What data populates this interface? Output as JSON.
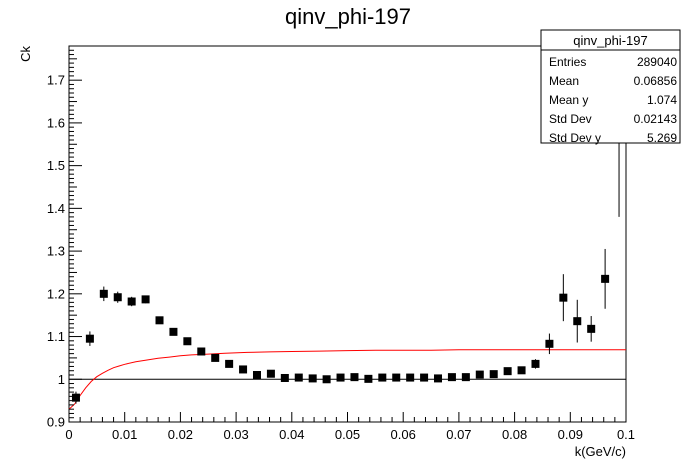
{
  "chart_data": {
    "type": "scatter",
    "title": "qinv_phi-197",
    "xlabel": "k(GeV/c)",
    "ylabel": "Ck",
    "xlim": [
      0,
      0.1
    ],
    "ylim": [
      0.9,
      1.78
    ],
    "x_ticks": [
      0,
      0.01,
      0.02,
      0.03,
      0.04,
      0.05,
      0.06,
      0.07,
      0.08,
      0.09,
      0.1
    ],
    "x_tick_labels": [
      "0",
      "0.01",
      "0.02",
      "0.03",
      "0.04",
      "0.05",
      "0.06",
      "0.07",
      "0.08",
      "0.09",
      "0.1"
    ],
    "y_ticks": [
      0.9,
      1.0,
      1.1,
      1.2,
      1.3,
      1.4,
      1.5,
      1.6,
      1.7
    ],
    "y_tick_labels": [
      "0.9",
      "1",
      "1.1",
      "1.2",
      "1.3",
      "1.4",
      "1.5",
      "1.6",
      "1.7"
    ],
    "grid": false,
    "reference_line_y": 1.0,
    "series": [
      {
        "type": "points_with_errors",
        "color": "#000000",
        "points": [
          {
            "x": 0.00125,
            "y": 0.957,
            "err": 0.014
          },
          {
            "x": 0.00375,
            "y": 1.095,
            "err": 0.017
          },
          {
            "x": 0.00625,
            "y": 1.2,
            "err": 0.017
          },
          {
            "x": 0.00875,
            "y": 1.192,
            "err": 0.013
          },
          {
            "x": 0.01125,
            "y": 1.182,
            "err": 0.011
          },
          {
            "x": 0.01375,
            "y": 1.187,
            "err": 0.009
          },
          {
            "x": 0.01625,
            "y": 1.138,
            "err": 0.007
          },
          {
            "x": 0.01875,
            "y": 1.111,
            "err": 0.006
          },
          {
            "x": 0.02125,
            "y": 1.089,
            "err": 0.005
          },
          {
            "x": 0.02375,
            "y": 1.065,
            "err": 0.005
          },
          {
            "x": 0.02625,
            "y": 1.05,
            "err": 0.004
          },
          {
            "x": 0.02875,
            "y": 1.036,
            "err": 0.004
          },
          {
            "x": 0.03125,
            "y": 1.023,
            "err": 0.003
          },
          {
            "x": 0.03375,
            "y": 1.01,
            "err": 0.003
          },
          {
            "x": 0.03625,
            "y": 1.013,
            "err": 0.003
          },
          {
            "x": 0.03875,
            "y": 1.003,
            "err": 0.003
          },
          {
            "x": 0.04125,
            "y": 1.004,
            "err": 0.003
          },
          {
            "x": 0.04375,
            "y": 1.002,
            "err": 0.003
          },
          {
            "x": 0.04625,
            "y": 1.0,
            "err": 0.003
          },
          {
            "x": 0.04875,
            "y": 1.004,
            "err": 0.003
          },
          {
            "x": 0.05125,
            "y": 1.005,
            "err": 0.003
          },
          {
            "x": 0.05375,
            "y": 1.001,
            "err": 0.003
          },
          {
            "x": 0.05625,
            "y": 1.004,
            "err": 0.003
          },
          {
            "x": 0.05875,
            "y": 1.004,
            "err": 0.003
          },
          {
            "x": 0.06125,
            "y": 1.004,
            "err": 0.003
          },
          {
            "x": 0.06375,
            "y": 1.004,
            "err": 0.003
          },
          {
            "x": 0.06625,
            "y": 1.002,
            "err": 0.003
          },
          {
            "x": 0.06875,
            "y": 1.005,
            "err": 0.004
          },
          {
            "x": 0.07125,
            "y": 1.005,
            "err": 0.004
          },
          {
            "x": 0.07375,
            "y": 1.011,
            "err": 0.005
          },
          {
            "x": 0.07625,
            "y": 1.012,
            "err": 0.005
          },
          {
            "x": 0.07875,
            "y": 1.019,
            "err": 0.006
          },
          {
            "x": 0.08125,
            "y": 1.021,
            "err": 0.008
          },
          {
            "x": 0.08375,
            "y": 1.036,
            "err": 0.011
          },
          {
            "x": 0.08625,
            "y": 1.083,
            "err": 0.024
          },
          {
            "x": 0.08875,
            "y": 1.191,
            "err": 0.055
          },
          {
            "x": 0.09125,
            "y": 1.136,
            "err": 0.05
          },
          {
            "x": 0.09375,
            "y": 1.118,
            "err": 0.03
          },
          {
            "x": 0.09625,
            "y": 1.235,
            "err": 0.07
          },
          {
            "x": 0.09875,
            "y": 1.78,
            "err": 0.4
          }
        ]
      },
      {
        "type": "fit_curve",
        "color": "#ff0000",
        "x": [
          0.0,
          0.001,
          0.002,
          0.003,
          0.004,
          0.005,
          0.006,
          0.007,
          0.008,
          0.009,
          0.01,
          0.012,
          0.014,
          0.016,
          0.018,
          0.02,
          0.022,
          0.025,
          0.028,
          0.032,
          0.036,
          0.04,
          0.045,
          0.05,
          0.055,
          0.06,
          0.065,
          0.07,
          0.075,
          0.08,
          0.085,
          0.09,
          0.095,
          0.1
        ],
        "y": [
          0.93,
          0.942,
          0.962,
          0.98,
          0.995,
          1.006,
          1.014,
          1.021,
          1.027,
          1.031,
          1.035,
          1.041,
          1.045,
          1.049,
          1.052,
          1.055,
          1.057,
          1.059,
          1.061,
          1.063,
          1.064,
          1.065,
          1.066,
          1.067,
          1.068,
          1.068,
          1.068,
          1.069,
          1.069,
          1.069,
          1.069,
          1.069,
          1.069,
          1.069
        ]
      }
    ]
  },
  "stats_box": {
    "title": "qinv_phi-197",
    "rows": [
      {
        "label": "Entries",
        "value": "289040"
      },
      {
        "label": "Mean",
        "value": "0.06856"
      },
      {
        "label": "Mean y",
        "value": "1.074"
      },
      {
        "label": "Std Dev",
        "value": "0.02143"
      },
      {
        "label": "Std Dev y",
        "value": "5.269"
      }
    ]
  }
}
